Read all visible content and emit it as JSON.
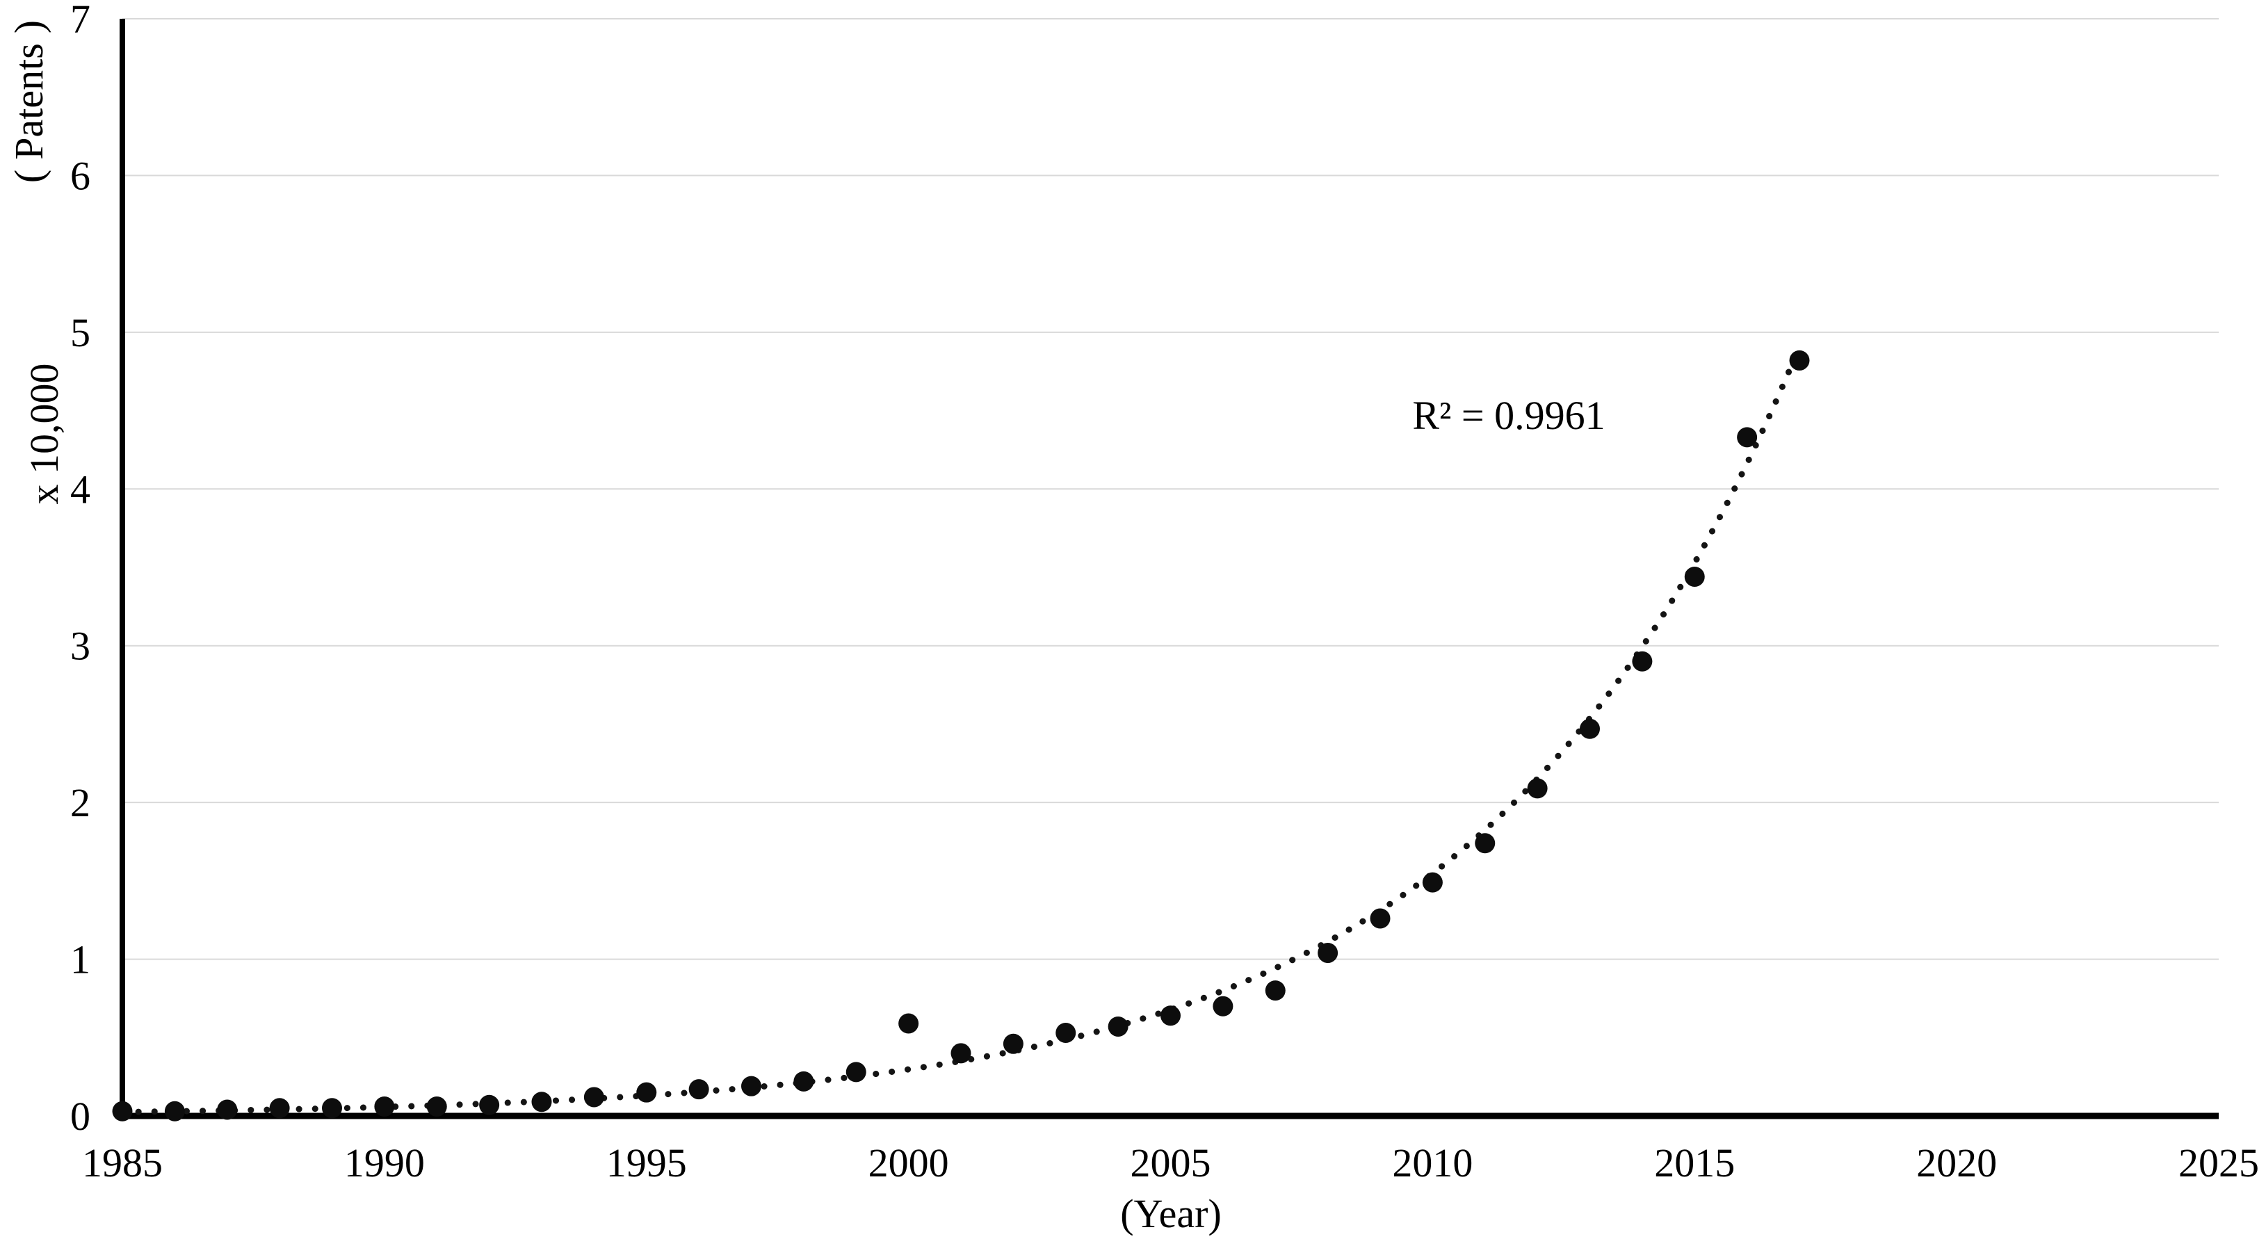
{
  "chart_data": {
    "type": "scatter",
    "title": "",
    "xlabel": "(Year)",
    "ylabel": {
      "open": "(",
      "text": "Patents",
      "close": ")"
    },
    "ylabel_units": "x 10,000",
    "series_name": "Patents (x 10,000)",
    "x": [
      1985,
      1986,
      1987,
      1988,
      1989,
      1990,
      1991,
      1992,
      1993,
      1994,
      1995,
      1996,
      1997,
      1998,
      1999,
      2000,
      2001,
      2002,
      2003,
      2004,
      2005,
      2006,
      2007,
      2008,
      2009,
      2010,
      2011,
      2012,
      2013,
      2014,
      2015,
      2016,
      2017
    ],
    "values": [
      0.03,
      0.03,
      0.04,
      0.05,
      0.05,
      0.06,
      0.06,
      0.07,
      0.09,
      0.12,
      0.15,
      0.17,
      0.19,
      0.22,
      0.28,
      0.59,
      0.4,
      0.46,
      0.53,
      0.57,
      0.64,
      0.7,
      0.8,
      1.04,
      1.26,
      1.49,
      1.74,
      2.09,
      2.47,
      2.9,
      3.44,
      4.33,
      4.82
    ],
    "xlim": [
      1985,
      2025
    ],
    "ylim": [
      0,
      7
    ],
    "x_ticks": [
      1985,
      1990,
      1995,
      2000,
      2005,
      2010,
      2015,
      2020,
      2025
    ],
    "y_ticks": [
      0,
      1,
      2,
      3,
      4,
      5,
      6,
      7
    ],
    "grid": "horizontal",
    "legend": "none",
    "trendline": {
      "style": "dotted",
      "model": "exponential",
      "r_squared_label": "R² = 0.9961",
      "a": 0.025,
      "b": 0.165,
      "x_start": 1985,
      "x_end": 2017.1
    },
    "colors": {
      "marker": "#0d0d0d",
      "trendline": "#141414",
      "gridline": "#d9d9d9",
      "axis": "#000000",
      "text": "#000000",
      "background": "#ffffff"
    }
  }
}
